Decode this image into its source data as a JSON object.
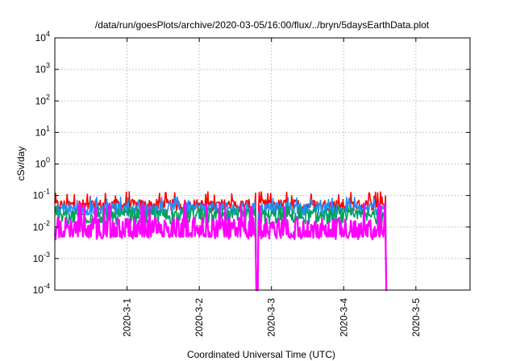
{
  "chart_data": {
    "type": "line",
    "title": "/data/run/goesPlots/archive/2020-03-05/16:00/flux/../bryn/5daysEarthData.plot",
    "xlabel": "Coordinated Universal Time (UTC)",
    "ylabel": "cSv/day",
    "yscale": "log",
    "ylim": [
      0.0001,
      10000
    ],
    "y_ticks": [
      {
        "value": 0.0001,
        "base": "10",
        "exp": "-4"
      },
      {
        "value": 0.001,
        "base": "10",
        "exp": "-3"
      },
      {
        "value": 0.01,
        "base": "10",
        "exp": "-2"
      },
      {
        "value": 0.1,
        "base": "10",
        "exp": "-1"
      },
      {
        "value": 1,
        "base": "10",
        "exp": "0"
      },
      {
        "value": 10,
        "base": "10",
        "exp": "1"
      },
      {
        "value": 100,
        "base": "10",
        "exp": "2"
      },
      {
        "value": 1000,
        "base": "10",
        "exp": "3"
      },
      {
        "value": 10000,
        "base": "10",
        "exp": "4"
      }
    ],
    "xlim_days": [
      0,
      5.75
    ],
    "x_ticks": [
      {
        "value": 1,
        "label": "2020-3-1"
      },
      {
        "value": 2,
        "label": "2020-3-2"
      },
      {
        "value": 3,
        "label": "2020-3-3"
      },
      {
        "value": 4,
        "label": "2020-3-4"
      },
      {
        "value": 5,
        "label": "2020-3-5"
      }
    ],
    "grid": true,
    "data_end_day": 4.6,
    "dropouts_day": [
      2.8,
      4.6
    ],
    "series": [
      {
        "color": "#ff0000",
        "base": 0.05,
        "spread": 0.18,
        "spike": 0.11
      },
      {
        "color": "#1e90ff",
        "base": 0.038,
        "spread": 0.2,
        "spike": 0.075
      },
      {
        "color": "#00a060",
        "base": 0.022,
        "spread": 0.25,
        "spike": 0.04
      },
      {
        "color": "#ff00ff",
        "base": 0.009,
        "spread": 0.35,
        "spike": 0.05
      }
    ]
  }
}
